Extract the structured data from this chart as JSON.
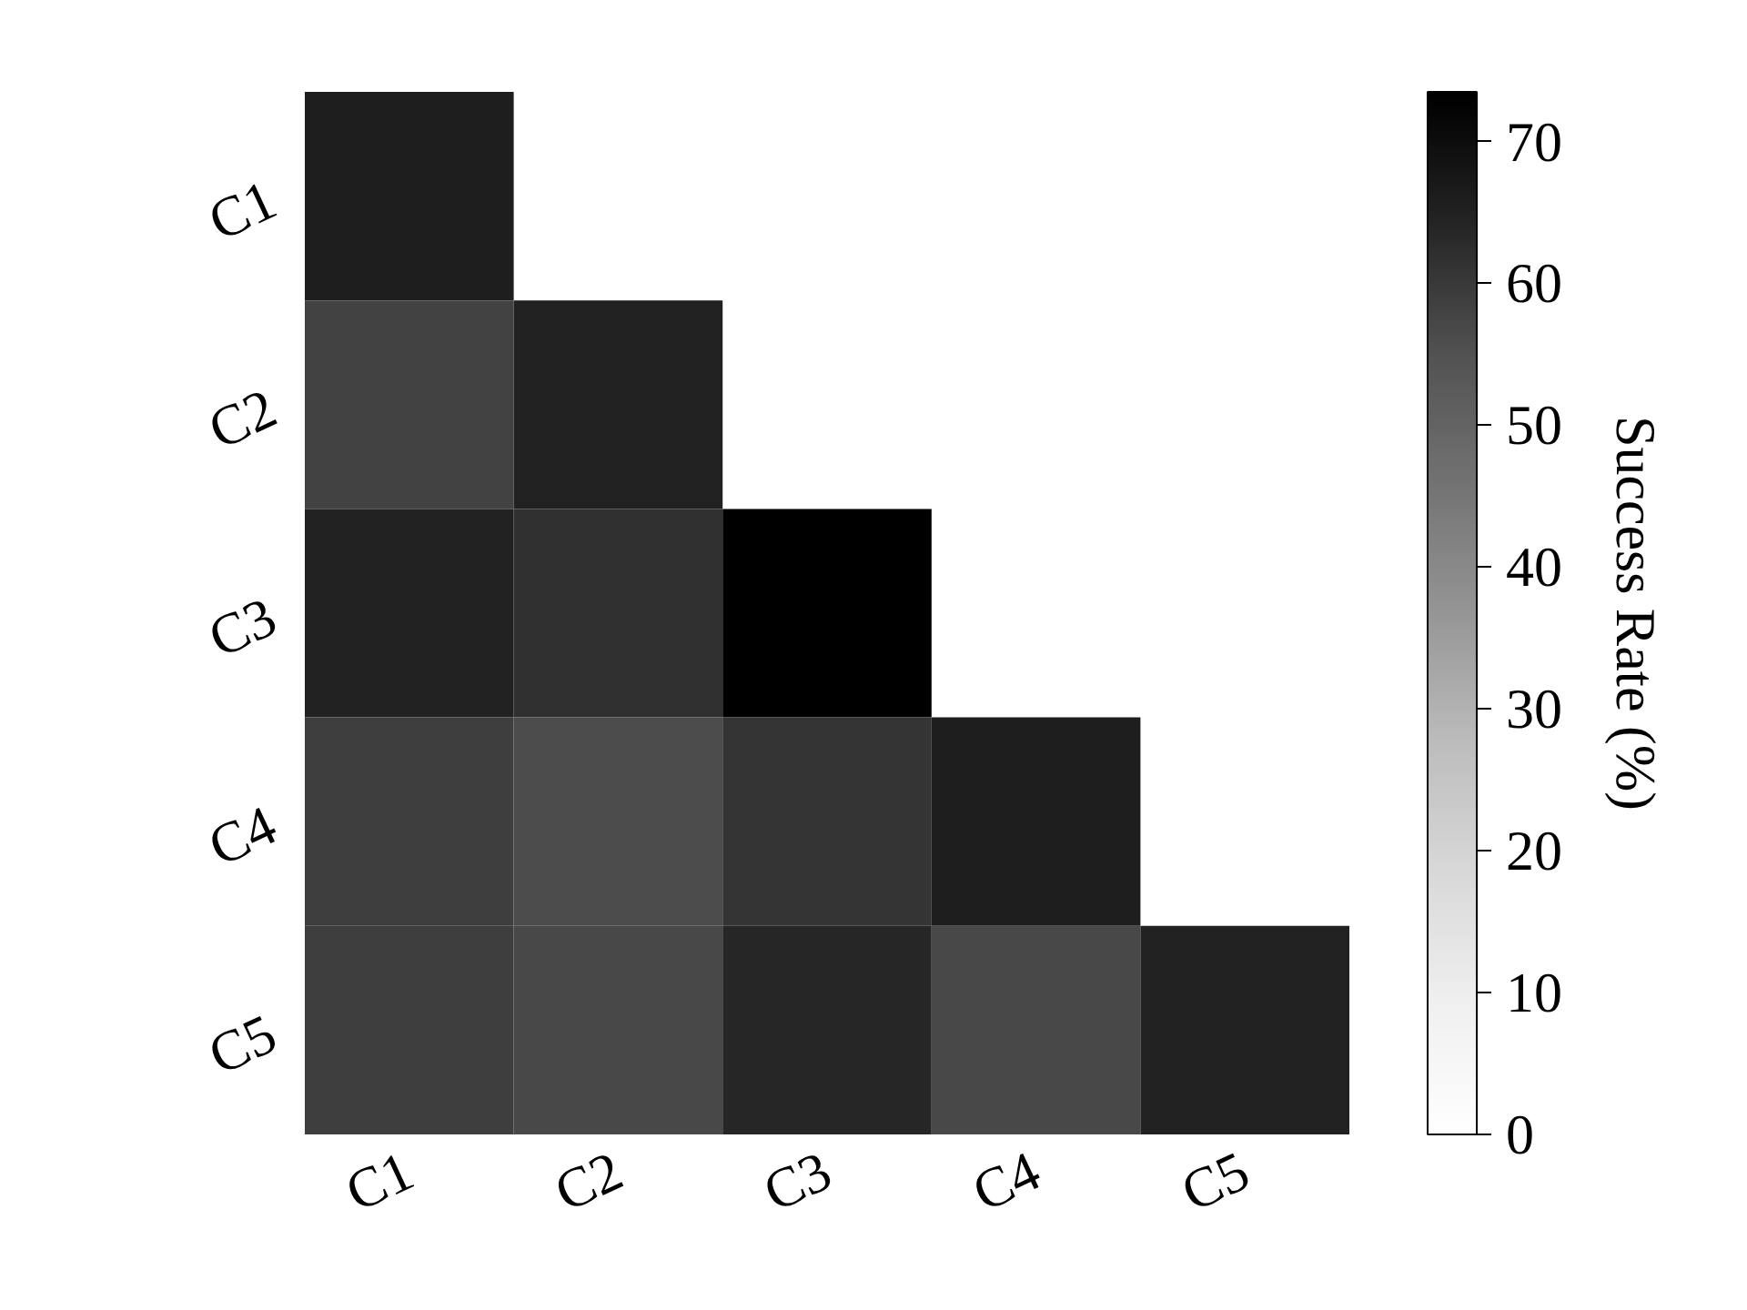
{
  "chart_data": {
    "type": "heatmap",
    "categories": [
      "C1",
      "C2",
      "C3",
      "C4",
      "C5"
    ],
    "y_categories": [
      "C1",
      "C2",
      "C3",
      "C4",
      "C5"
    ],
    "cells": [
      [
        66,
        null,
        null,
        null,
        null
      ],
      [
        58,
        65,
        null,
        null,
        null
      ],
      [
        65,
        62,
        73.5,
        null,
        null
      ],
      [
        59,
        56,
        61,
        66,
        null
      ],
      [
        59,
        57,
        64,
        57,
        65
      ]
    ],
    "clim": [
      0,
      73.5
    ],
    "cticks": [
      0,
      10,
      20,
      30,
      40,
      50,
      60,
      70
    ],
    "clabel": "Success Rate (%)"
  }
}
